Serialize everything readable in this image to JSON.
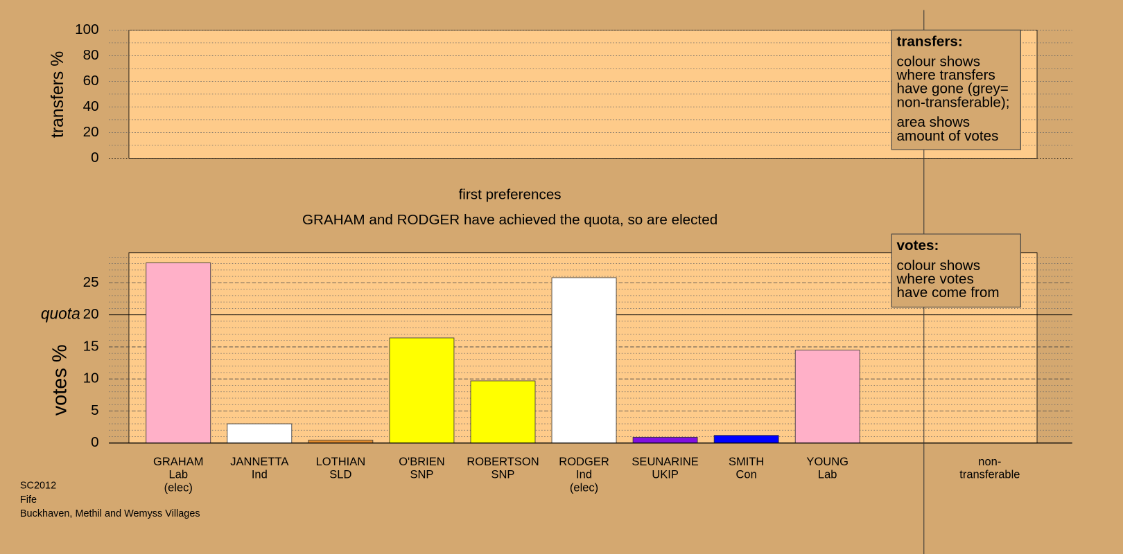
{
  "chart_data": [
    {
      "type": "bar",
      "y_label": "transfers %",
      "ylim": [
        0,
        100
      ],
      "yticks": [
        0,
        20,
        40,
        60,
        80,
        100
      ],
      "minor_ystep": 10,
      "grid": true,
      "legend": {
        "title": "transfers:",
        "paragraphs": [
          [
            "colour shows",
            "where transfers",
            "have gone (grey=",
            "non-transferable);"
          ],
          [
            "area shows",
            "amount of votes"
          ]
        ]
      }
    },
    {
      "type": "bar",
      "title": "first preferences",
      "subtitle": "GRAHAM and RODGER have achieved the quota, so are elected",
      "y_label": "votes %",
      "categories": [
        [
          "GRAHAM",
          "Lab",
          "(elec)"
        ],
        [
          "JANNETTA",
          "Ind"
        ],
        [
          "LOTHIAN",
          "SLD"
        ],
        [
          "O'BRIEN",
          "SNP"
        ],
        [
          "ROBERTSON",
          "SNP"
        ],
        [
          "RODGER",
          "Ind",
          "(elec)"
        ],
        [
          "SEUNARINE",
          "UKIP"
        ],
        [
          "SMITH",
          "Con"
        ],
        [
          "YOUNG",
          "Lab"
        ],
        [
          "non-",
          "transferable"
        ]
      ],
      "values": [
        28.1,
        3.0,
        0.45,
        16.4,
        9.7,
        25.8,
        0.9,
        1.2,
        14.5,
        null
      ],
      "colors": [
        "#ffb0c8",
        "#ffffff",
        "#e08a2c",
        "#ffff00",
        "#ffff00",
        "#ffffff",
        "#8010e0",
        "#0000ff",
        "#ffb0c8",
        null
      ],
      "quota": {
        "value": 20,
        "label": "quota"
      },
      "ylim": [
        0,
        29.7
      ],
      "yticks": [
        0,
        5,
        10,
        15,
        20,
        25
      ],
      "minor_ystep": 1,
      "grid": true,
      "legend": {
        "title": "votes:",
        "paragraphs": [
          [
            "colour shows",
            "where votes",
            "have come from"
          ]
        ]
      }
    }
  ],
  "footer": [
    "SC2012",
    "Fife",
    "Buckhaven, Methil and Wemyss Villages"
  ]
}
